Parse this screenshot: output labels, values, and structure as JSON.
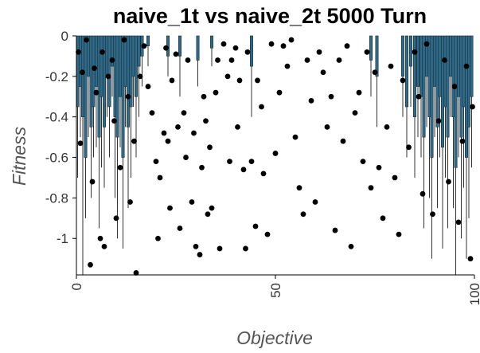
{
  "chart_data": {
    "type": "scatter",
    "title": "naive_1t vs naive_2t 5000 Turn",
    "xlabel": "Objective",
    "ylabel": "Fitness",
    "xlim": [
      0,
      100
    ],
    "ylim": [
      -1.18,
      0
    ],
    "x_ticks": [
      "0",
      "50",
      "100"
    ],
    "x_tick_values": [
      0,
      50,
      100
    ],
    "y_ticks": [
      "0",
      "-0.2",
      "-0.4",
      "-0.6",
      "-0.8",
      "-1"
    ],
    "y_tick_values": [
      0,
      -0.2,
      -0.4,
      -0.6,
      -0.8,
      -1
    ],
    "grid": false,
    "colors": {
      "bar": "#2e6b8a",
      "bar_edge": "#1f2c33",
      "whisker": "#333333",
      "point": "#000000"
    },
    "series": [
      {
        "kind": "bars",
        "values": [
          [
            0.3,
            -0.35,
            -0.7
          ],
          [
            1.0,
            -0.25,
            -0.5
          ],
          [
            1.6,
            -0.4,
            -1.18
          ],
          [
            2.3,
            -0.6,
            -0.9
          ],
          [
            3.0,
            -0.2,
            -0.5
          ],
          [
            3.7,
            -0.45,
            -0.8
          ],
          [
            4.3,
            -0.35,
            -0.6
          ],
          [
            5.0,
            -0.25,
            -0.55
          ],
          [
            5.7,
            -0.5,
            -0.95
          ],
          [
            6.3,
            -0.3,
            -0.65
          ],
          [
            7.0,
            -0.45,
            -0.75
          ],
          [
            7.7,
            -0.2,
            -0.4
          ],
          [
            8.3,
            -0.35,
            -0.6
          ],
          [
            9.0,
            -0.15,
            -0.3
          ],
          [
            9.7,
            -0.4,
            -0.8
          ],
          [
            10.3,
            -0.5,
            -1.0
          ],
          [
            11.0,
            -0.3,
            -0.55
          ],
          [
            11.7,
            -0.6,
            -1.05
          ],
          [
            12.3,
            -0.25,
            -0.45
          ],
          [
            13.0,
            -0.45,
            -0.85
          ],
          [
            13.7,
            -0.35,
            -0.7
          ],
          [
            14.3,
            -0.2,
            -0.35
          ],
          [
            15.0,
            -0.3,
            -0.6
          ],
          [
            15.7,
            -0.15,
            -0.4
          ],
          [
            16.5,
            -0.1,
            -0.25
          ],
          [
            18.0,
            -0.05,
            -0.15
          ],
          [
            23.0,
            -0.1,
            -0.2
          ],
          [
            26.0,
            -0.1,
            -0.3
          ],
          [
            30.5,
            -0.12,
            -0.25
          ],
          [
            34.0,
            -0.06,
            -0.15
          ],
          [
            44.0,
            -0.15,
            -0.4
          ],
          [
            74.0,
            -0.12,
            -0.3
          ],
          [
            75.5,
            -0.2,
            -0.45
          ],
          [
            82.0,
            -0.2,
            -0.4
          ],
          [
            83.0,
            -0.35,
            -0.6
          ],
          [
            84.0,
            -0.15,
            -0.35
          ],
          [
            85.0,
            -0.4,
            -0.7
          ],
          [
            85.8,
            -0.25,
            -0.5
          ],
          [
            86.6,
            -0.3,
            -0.6
          ],
          [
            87.3,
            -0.5,
            -0.95
          ],
          [
            88.0,
            -0.2,
            -0.45
          ],
          [
            88.7,
            -0.4,
            -0.8
          ],
          [
            89.3,
            -0.6,
            -1.1
          ],
          [
            90.0,
            -0.25,
            -0.5
          ],
          [
            90.7,
            -0.45,
            -0.85
          ],
          [
            91.3,
            -0.3,
            -0.6
          ],
          [
            92.0,
            -0.55,
            -1.05
          ],
          [
            92.7,
            -0.35,
            -0.7
          ],
          [
            93.3,
            -0.5,
            -0.95
          ],
          [
            94.0,
            -0.2,
            -0.4
          ],
          [
            94.7,
            -0.4,
            -0.85
          ],
          [
            95.3,
            -0.65,
            -1.18
          ],
          [
            96.0,
            -0.3,
            -0.6
          ],
          [
            96.7,
            -0.5,
            -1.0
          ],
          [
            97.3,
            -0.35,
            -0.75
          ],
          [
            98.0,
            -0.6,
            -1.1
          ],
          [
            98.6,
            -0.45,
            -0.9
          ],
          [
            99.3,
            -0.3,
            -0.65
          ]
        ]
      },
      {
        "kind": "points",
        "values": [
          [
            0.5,
            -0.08
          ],
          [
            1.0,
            -0.53
          ],
          [
            1.5,
            -0.18
          ],
          [
            2.5,
            -0.02
          ],
          [
            3.5,
            -1.13
          ],
          [
            4.0,
            -0.72
          ],
          [
            4.5,
            -0.16
          ],
          [
            5.0,
            -0.28
          ],
          [
            6.0,
            -1.0
          ],
          [
            6.5,
            -0.08
          ],
          [
            7.0,
            -1.04
          ],
          [
            8.0,
            -0.2
          ],
          [
            9.0,
            -0.12
          ],
          [
            9.5,
            -0.42
          ],
          [
            10.0,
            -0.9
          ],
          [
            11.0,
            -0.65
          ],
          [
            12.0,
            -0.02
          ],
          [
            13.0,
            -0.3
          ],
          [
            13.5,
            -0.82
          ],
          [
            14.5,
            -0.52
          ],
          [
            15.0,
            -1.17
          ],
          [
            16.0,
            -0.2
          ],
          [
            17.0,
            -0.05
          ],
          [
            18.0,
            -0.25
          ],
          [
            19.0,
            -0.38
          ],
          [
            20.0,
            -0.62
          ],
          [
            20.5,
            -1.0
          ],
          [
            21.0,
            -0.7
          ],
          [
            22.0,
            -0.48
          ],
          [
            22.5,
            -0.06
          ],
          [
            23.0,
            -0.52
          ],
          [
            23.5,
            -0.85
          ],
          [
            24.0,
            -0.22
          ],
          [
            25.0,
            -0.09
          ],
          [
            25.5,
            -0.45
          ],
          [
            26.0,
            -0.95
          ],
          [
            27.0,
            -0.38
          ],
          [
            27.5,
            -0.6
          ],
          [
            28.0,
            -0.12
          ],
          [
            29.0,
            -0.82
          ],
          [
            29.5,
            -0.48
          ],
          [
            30.0,
            -1.04
          ],
          [
            31.0,
            -1.08
          ],
          [
            31.5,
            -0.65
          ],
          [
            32.0,
            -0.3
          ],
          [
            32.5,
            -0.42
          ],
          [
            33.0,
            -0.88
          ],
          [
            33.5,
            -0.55
          ],
          [
            34.0,
            -0.85
          ],
          [
            35.0,
            -0.28
          ],
          [
            35.5,
            -0.12
          ],
          [
            36.0,
            -1.05
          ],
          [
            37.0,
            -0.04
          ],
          [
            38.0,
            -0.2
          ],
          [
            38.5,
            -0.62
          ],
          [
            39.0,
            -0.12
          ],
          [
            40.0,
            -0.06
          ],
          [
            40.5,
            -0.45
          ],
          [
            41.0,
            -0.22
          ],
          [
            42.0,
            -0.66
          ],
          [
            42.5,
            -1.05
          ],
          [
            43.0,
            -0.08
          ],
          [
            44.0,
            -0.62
          ],
          [
            45.0,
            -0.94
          ],
          [
            45.5,
            -0.22
          ],
          [
            46.5,
            -0.35
          ],
          [
            47.0,
            -0.68
          ],
          [
            48.0,
            -0.98
          ],
          [
            49.0,
            -0.04
          ],
          [
            50.0,
            -0.58
          ],
          [
            51.0,
            -0.28
          ],
          [
            52.0,
            -0.05
          ],
          [
            53.0,
            -0.15
          ],
          [
            54.0,
            -0.02
          ],
          [
            55.0,
            -0.5
          ],
          [
            56.0,
            -0.75
          ],
          [
            57.0,
            -0.88
          ],
          [
            58.0,
            -0.12
          ],
          [
            59.0,
            -0.32
          ],
          [
            60.0,
            -0.82
          ],
          [
            61.0,
            -0.08
          ],
          [
            62.0,
            -0.18
          ],
          [
            63.0,
            -0.45
          ],
          [
            64.0,
            -0.3
          ],
          [
            65.0,
            -0.96
          ],
          [
            66.0,
            -0.12
          ],
          [
            67.0,
            -0.52
          ],
          [
            68.0,
            -0.05
          ],
          [
            69.0,
            -1.04
          ],
          [
            70.0,
            -0.38
          ],
          [
            71.0,
            -0.28
          ],
          [
            72.0,
            -0.62
          ],
          [
            73.0,
            -0.08
          ],
          [
            74.0,
            -0.75
          ],
          [
            75.0,
            -0.18
          ],
          [
            76.0,
            -0.65
          ],
          [
            77.0,
            -0.9
          ],
          [
            78.0,
            -0.45
          ],
          [
            79.0,
            -0.15
          ],
          [
            80.0,
            -0.7
          ],
          [
            81.0,
            -0.98
          ],
          [
            82.0,
            -0.22
          ],
          [
            83.5,
            -0.55
          ],
          [
            85.0,
            -0.08
          ],
          [
            86.0,
            -0.3
          ],
          [
            87.0,
            -0.78
          ],
          [
            88.0,
            -0.04
          ],
          [
            89.5,
            -0.88
          ],
          [
            91.0,
            -0.42
          ],
          [
            92.5,
            -0.12
          ],
          [
            93.5,
            -0.72
          ],
          [
            95.0,
            -0.25
          ],
          [
            96.0,
            -0.92
          ],
          [
            97.0,
            -0.52
          ],
          [
            98.0,
            -0.15
          ],
          [
            99.0,
            -1.1
          ],
          [
            99.5,
            -0.35
          ]
        ]
      }
    ]
  }
}
